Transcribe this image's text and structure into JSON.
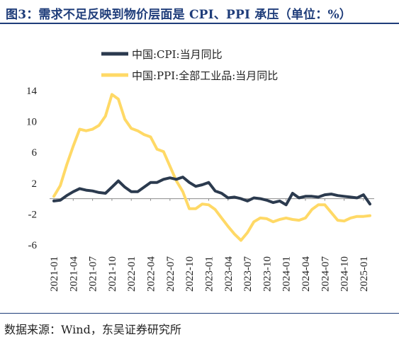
{
  "title": "图3：需求不足反映到物价层面是 CPI、PPI 承压（单位：%）",
  "source": "数据来源：Wind，东吴证券研究所",
  "chart_data": {
    "type": "line",
    "x": [
      "2021-01",
      "2021-02",
      "2021-03",
      "2021-04",
      "2021-05",
      "2021-06",
      "2021-07",
      "2021-08",
      "2021-09",
      "2021-10",
      "2021-11",
      "2021-12",
      "2022-01",
      "2022-02",
      "2022-03",
      "2022-04",
      "2022-05",
      "2022-06",
      "2022-07",
      "2022-08",
      "2022-09",
      "2022-10",
      "2022-11",
      "2022-12",
      "2023-01",
      "2023-02",
      "2023-03",
      "2023-04",
      "2023-05",
      "2023-06",
      "2023-07",
      "2023-08",
      "2023-09",
      "2023-10",
      "2023-11",
      "2023-12",
      "2024-01",
      "2024-02",
      "2024-03",
      "2024-04",
      "2024-05",
      "2024-06",
      "2024-07",
      "2024-08",
      "2024-09",
      "2024-10",
      "2024-11",
      "2024-12",
      "2025-01",
      "2025-02"
    ],
    "xticks": [
      "2021-01",
      "2021-04",
      "2021-07",
      "2021-10",
      "2022-01",
      "2022-04",
      "2022-07",
      "2022-10",
      "2023-01",
      "2023-04",
      "2023-07",
      "2023-10",
      "2024-01",
      "2024-04",
      "2024-07",
      "2024-10",
      "2025-01"
    ],
    "ylim": [
      -6,
      14
    ],
    "yticks": [
      "14",
      "10",
      "6",
      "2",
      "-2",
      "-6"
    ],
    "legend_position": "top-left",
    "series": [
      {
        "name": "中国:CPI:当月同比",
        "color": "#2b3a4e",
        "values": [
          -0.3,
          -0.2,
          0.4,
          0.9,
          1.3,
          1.1,
          1.0,
          0.8,
          0.7,
          1.5,
          2.3,
          1.5,
          0.9,
          0.9,
          1.5,
          2.1,
          2.1,
          2.5,
          2.7,
          2.5,
          2.8,
          2.1,
          1.6,
          1.8,
          2.1,
          1.0,
          0.7,
          0.1,
          0.2,
          0.0,
          -0.3,
          0.1,
          0.0,
          -0.2,
          -0.5,
          -0.3,
          -0.8,
          0.7,
          0.1,
          0.3,
          0.3,
          0.2,
          0.5,
          0.6,
          0.4,
          0.3,
          0.2,
          0.1,
          0.5,
          -0.7
        ]
      },
      {
        "name": "中国:PPI:全部工业品:当月同比",
        "color": "#ffd966",
        "values": [
          0.3,
          1.7,
          4.4,
          6.8,
          9.0,
          8.8,
          9.0,
          9.5,
          10.7,
          13.5,
          12.9,
          10.3,
          9.1,
          8.8,
          8.3,
          8.0,
          6.4,
          6.1,
          4.2,
          2.3,
          0.9,
          -1.3,
          -1.3,
          -0.7,
          -0.8,
          -1.4,
          -2.5,
          -3.6,
          -4.6,
          -5.4,
          -4.4,
          -3.0,
          -2.5,
          -2.6,
          -3.0,
          -2.7,
          -2.5,
          -2.7,
          -2.8,
          -2.5,
          -1.4,
          -0.8,
          -0.8,
          -1.8,
          -2.8,
          -2.9,
          -2.5,
          -2.3,
          -2.3,
          -2.2
        ]
      }
    ]
  }
}
